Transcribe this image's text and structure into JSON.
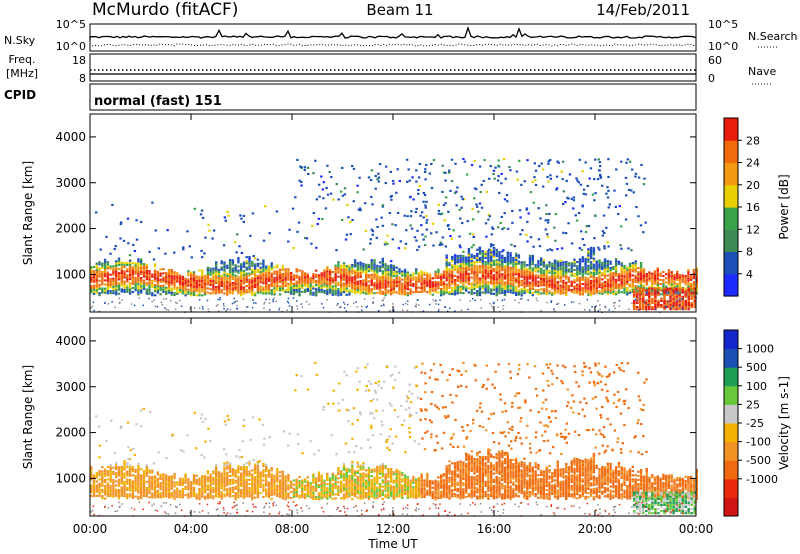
{
  "header": {
    "station": "McMurdo (fitACF)",
    "beam": "Beam 11",
    "date": "14/Feb/2011"
  },
  "status_panels": {
    "nsky_label": "N.Sky",
    "nsearch_label": "N.Search",
    "noise_ticks": [
      "10^5",
      "10^0"
    ],
    "freq_label_top": "Freq.",
    "freq_label_unit": "[MHz]",
    "freq_ticks": [
      "18",
      "8"
    ],
    "nave_label": "Nave",
    "nave_ticks": [
      "60",
      "0"
    ],
    "cpid_label": "CPID",
    "cpid_value": "normal (fast) 151"
  },
  "colors": {
    "power_scale": [
      "#1e2bff",
      "#1d4fb8",
      "#3e8a55",
      "#3aa34a",
      "#e8d000",
      "#f39a12",
      "#f16a0c",
      "#e81d0c"
    ],
    "velocity_scale": [
      "#d11414",
      "#ea2a0c",
      "#f06a10",
      "#f39224",
      "#f2b100",
      "#c8c8c8",
      "#67c93a",
      "#1f9e55",
      "#1c4fb3",
      "#1226cc"
    ]
  },
  "chart_data": [
    {
      "type": "heatmap",
      "title": "Power",
      "xlabel": "",
      "ylabel": "Slant Range [km]",
      "x_ticks": [
        "00:00",
        "04:00",
        "08:00",
        "12:00",
        "16:00",
        "20:00",
        "00:00"
      ],
      "x_range_hours": [
        0,
        24
      ],
      "y_ticks": [
        1000,
        2000,
        3000,
        4000
      ],
      "ylim": [
        180,
        4500
      ],
      "colorbar_label": "Power [dB]",
      "colorbar_ticks": [
        4,
        8,
        12,
        16,
        20,
        24,
        28
      ],
      "bands": [
        {
          "name": "main_echo_band",
          "hours": [
            0,
            24
          ],
          "range_km": [
            550,
            1200
          ],
          "value_db": [
            8,
            30
          ]
        },
        {
          "name": "far_range_patches",
          "hours": [
            8,
            22
          ],
          "range_km": [
            1500,
            3500
          ],
          "value_db": [
            4,
            16
          ]
        },
        {
          "name": "late_near_range",
          "hours": [
            21.5,
            24
          ],
          "range_km": [
            200,
            700
          ],
          "value_db": [
            20,
            30
          ]
        }
      ]
    },
    {
      "type": "heatmap",
      "title": "Velocity",
      "xlabel": "Time UT",
      "ylabel": "Slant Range [km]",
      "x_ticks": [
        "00:00",
        "04:00",
        "08:00",
        "12:00",
        "16:00",
        "20:00",
        "00:00"
      ],
      "x_range_hours": [
        0,
        24
      ],
      "y_ticks": [
        1000,
        2000,
        3000,
        4000
      ],
      "ylim": [
        180,
        4500
      ],
      "colorbar_label": "Velocity [m s-1]",
      "colorbar_ticks": [
        1000,
        500,
        100,
        25,
        -25,
        -100,
        -500,
        -1000
      ],
      "bands": [
        {
          "name": "main_echo_band",
          "hours": [
            0,
            24
          ],
          "range_km": [
            550,
            1200
          ],
          "value_ms": [
            -200,
            50
          ]
        },
        {
          "name": "far_range_patches",
          "hours": [
            13,
            22
          ],
          "range_km": [
            1100,
            3500
          ],
          "value_ms": [
            -500,
            -100
          ]
        },
        {
          "name": "gray_low_velocity",
          "hours": [
            0,
            22
          ],
          "range_km": [
            1500,
            3000
          ],
          "value_ms": [
            -25,
            25
          ]
        }
      ]
    }
  ]
}
